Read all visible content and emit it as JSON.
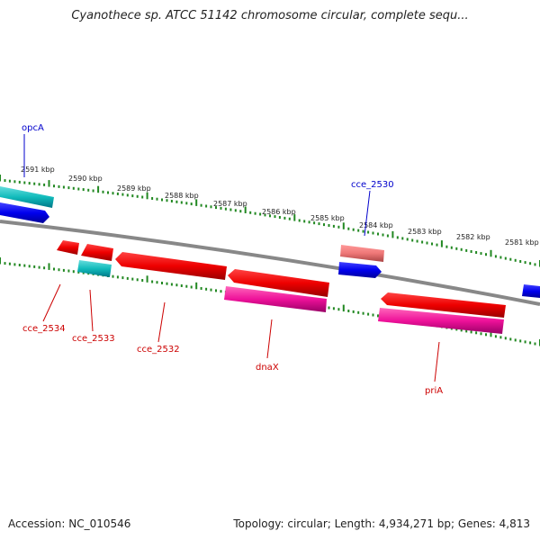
{
  "header": {
    "title": "Cyanothece sp. ATCC 51142 chromosome circular, complete sequ..."
  },
  "footer": {
    "accession": "Accession: NC_010546",
    "stats": "Topology: circular; Length: 4,934,271 bp; Genes: 4,813"
  },
  "map": {
    "kbp_labels": [
      "2591 kbp",
      "2590 kbp",
      "2589 kbp",
      "2588 kbp",
      "2587 kbp",
      "2586 kbp",
      "2585 kbp",
      "2584 kbp",
      "2583 kbp",
      "2582 kbp",
      "2581 kbp"
    ],
    "genes_forward": [
      {
        "label": "opcA",
        "color": "#0000cc"
      },
      {
        "label": "cce_2530",
        "color": "#0000cc"
      }
    ],
    "genes_reverse": [
      {
        "label": "cce_2534",
        "color": "#cc0000"
      },
      {
        "label": "cce_2533",
        "color": "#cc0000"
      },
      {
        "label": "cce_2532",
        "color": "#cc0000"
      },
      {
        "label": "dnaX",
        "color": "#cc0000"
      },
      {
        "label": "priA",
        "color": "#cc0000"
      }
    ],
    "colors": {
      "backbone": "#888888",
      "ticks": "#228822",
      "cds_red": "#ee1111",
      "cds_blue": "#1111dd",
      "cds_cyan": "#22bbcc",
      "cds_magenta": "#ee2299",
      "cds_salmon": "#ee7777"
    }
  }
}
